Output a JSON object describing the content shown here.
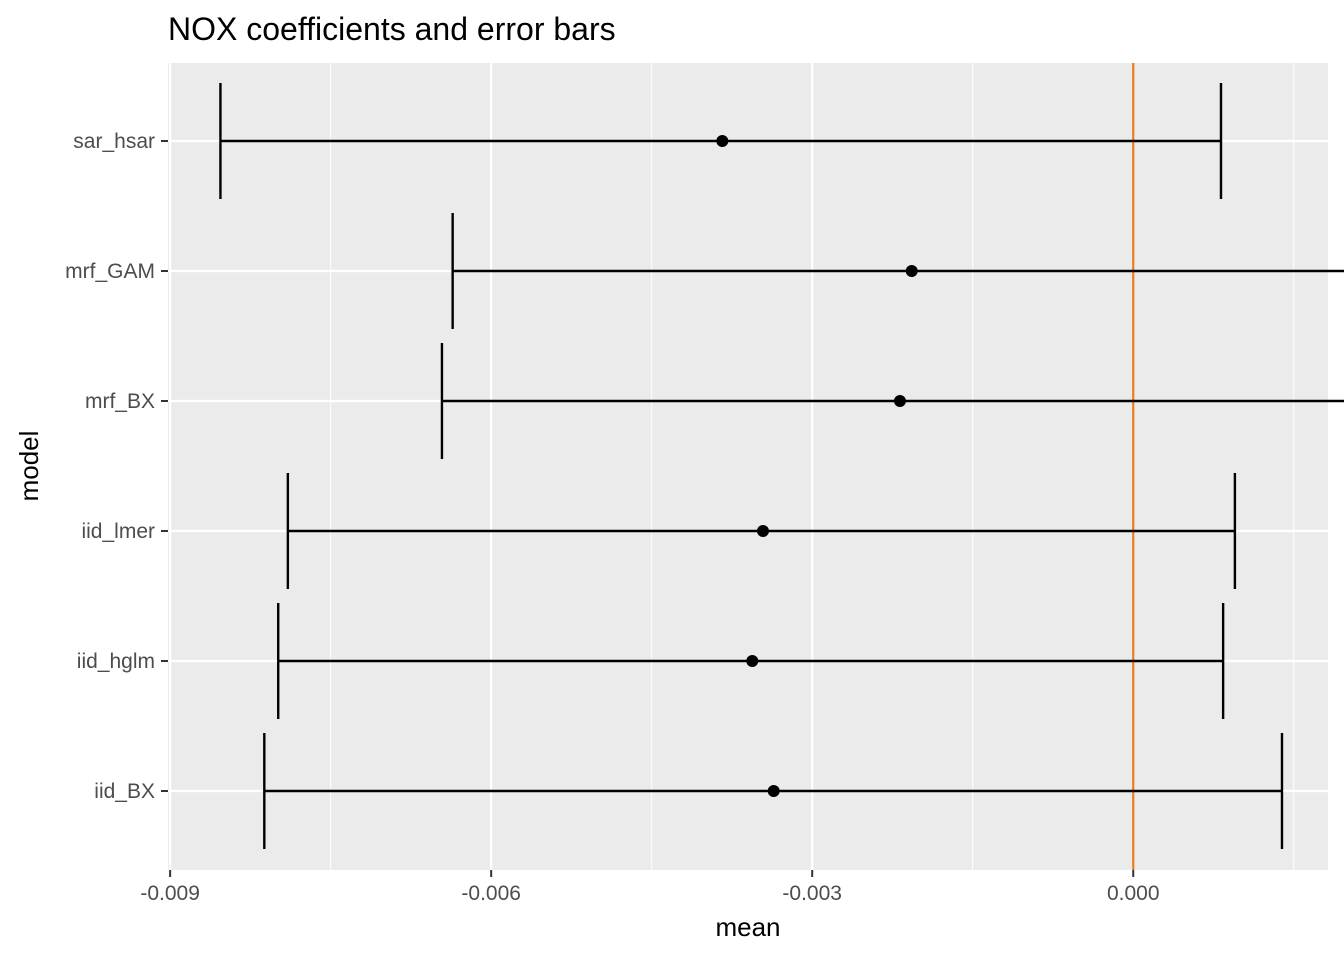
{
  "chart_data": {
    "type": "errorbar",
    "title": "NOX coefficients and error bars",
    "xlabel": "mean",
    "ylabel": "model",
    "xlim": [
      -0.00902,
      0.00182
    ],
    "x_ticks": [
      -0.009,
      -0.006,
      -0.003,
      0.0
    ],
    "x_tick_labels": [
      "-0.009",
      "-0.006",
      "-0.003",
      "0.000"
    ],
    "x_minor_ticks": [
      -0.0075,
      -0.0045,
      -0.0015,
      0.0015
    ],
    "categories": [
      "sar_hsar",
      "mrf_GAM",
      "mrf_BX",
      "iid_lmer",
      "iid_hglm",
      "iid_BX"
    ],
    "mean": [
      -0.00384,
      -0.00207,
      -0.00218,
      -0.00346,
      -0.00356,
      -0.00336
    ],
    "lower": [
      -0.00853,
      -0.00636,
      -0.00646,
      -0.0079,
      -0.00799,
      -0.00812
    ],
    "upper": [
      0.00082,
      0.0022,
      0.00209,
      0.00095,
      0.00084,
      0.00139
    ],
    "reference_line": {
      "x": 0.0,
      "color": "#e87d1e"
    },
    "colors": {
      "panel_background": "#ebebeb",
      "grid_major": "#ffffff",
      "errorbar": "#000000",
      "point": "#000000"
    },
    "grid": true,
    "legend": "none"
  }
}
